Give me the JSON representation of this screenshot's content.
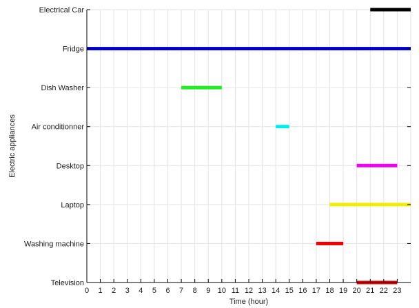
{
  "chart_data": {
    "type": "bar",
    "orientation": "horizontal-timeline",
    "xlabel": "Time (hour)",
    "ylabel": "Electric appliances",
    "xlim": [
      0,
      24
    ],
    "xticks": [
      0,
      1,
      2,
      3,
      4,
      5,
      6,
      7,
      8,
      9,
      10,
      11,
      12,
      13,
      14,
      15,
      16,
      17,
      18,
      19,
      20,
      21,
      22,
      23
    ],
    "grid": true,
    "categories": [
      "Electrical Car",
      "Fridge",
      "Dish Washer",
      "Air conditionner",
      "Desktop",
      "Laptop",
      "Washing machine",
      "Television"
    ],
    "series": [
      {
        "category": "Electrical Car",
        "start": 21,
        "end": 24,
        "color": "#000000"
      },
      {
        "category": "Fridge",
        "start": 0,
        "end": 24,
        "color": "#0000cc"
      },
      {
        "category": "Dish Washer",
        "start": 7,
        "end": 10,
        "color": "#22ee22"
      },
      {
        "category": "Air conditionner",
        "start": 14,
        "end": 15,
        "color": "#00eeee"
      },
      {
        "category": "Desktop",
        "start": 20,
        "end": 23,
        "color": "#ee00ee"
      },
      {
        "category": "Laptop",
        "start": 18,
        "end": 24,
        "color": "#eeee00"
      },
      {
        "category": "Washing machine",
        "start": 17,
        "end": 19,
        "color": "#ee0000"
      },
      {
        "category": "Television",
        "start": 20,
        "end": 23,
        "color": "#ee0000"
      }
    ]
  }
}
